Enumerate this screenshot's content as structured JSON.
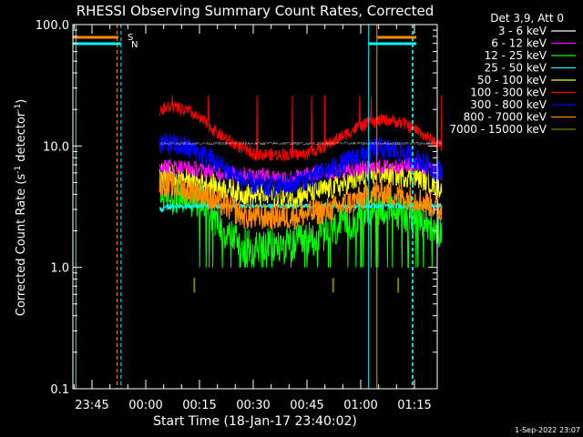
{
  "chart_data": {
    "type": "line",
    "title": "RHESSI Observing Summary Count Rates, Corrected",
    "xlabel": "Start Time (18-Jan-17 23:40:02)",
    "ylabel_main": "Corrected Count Rate (s",
    "ylabel_sup1": "-1",
    "ylabel_mid": " detector",
    "ylabel_sup2": "-1",
    "ylabel_end": ")",
    "yscale": "log",
    "ylim": [
      0.1,
      100.0
    ],
    "y_ticks": [
      {
        "value": 0.1,
        "label": "0.1"
      },
      {
        "value": 1.0,
        "label": "1.0"
      },
      {
        "value": 10.0,
        "label": "10.0"
      },
      {
        "value": 100.0,
        "label": "100.0"
      }
    ],
    "xlim_min": [
      -5,
      79
    ],
    "x_ticks": [
      {
        "value": 5,
        "label": "23:45"
      },
      {
        "value": 20,
        "label": "00:00"
      },
      {
        "value": 35,
        "label": "00:15"
      },
      {
        "value": 50,
        "label": "00:30"
      },
      {
        "value": 65,
        "label": "00:45"
      },
      {
        "value": 80,
        "label": "01:00"
      },
      {
        "value": 95,
        "label": "01:15"
      }
    ],
    "legend_title": "Det 3,9, Att 0",
    "legend_position": "top-right",
    "series": [
      {
        "name": "3 - 6 keV",
        "color": "#ffffff"
      },
      {
        "name": "6 - 12 keV",
        "color": "#ff00ff"
      },
      {
        "name": "12 - 25 keV",
        "color": "#00ff00"
      },
      {
        "name": "25 - 50 keV",
        "color": "#00ffff"
      },
      {
        "name": "50 - 100 keV",
        "color": "#ffff00"
      },
      {
        "name": "100 - 300 keV",
        "color": "#ff0000"
      },
      {
        "name": "300 - 800 keV",
        "color": "#0000ff"
      },
      {
        "name": "800 - 7000 keV",
        "color": "#ff8c00"
      },
      {
        "name": "7000 - 15000 keV",
        "color": "#808000"
      }
    ],
    "profiles": {
      "red": {
        "x": [
          15,
          18,
          22,
          25,
          28,
          32,
          37,
          43,
          48,
          52,
          57,
          61,
          65,
          68,
          72,
          75,
          78,
          80
        ],
        "y": [
          20,
          21,
          19,
          16,
          13,
          10.5,
          8.5,
          8.5,
          8.5,
          9.5,
          12,
          14.5,
          16,
          16.5,
          15,
          13,
          11,
          10
        ]
      },
      "blue": {
        "x": [
          15,
          20,
          25,
          30,
          35,
          40,
          45,
          50,
          55,
          60,
          65,
          70,
          75,
          80
        ],
        "y": [
          10.5,
          10,
          8.5,
          6.5,
          5,
          4.5,
          4.8,
          5.5,
          6.5,
          8,
          9.5,
          9,
          7.5,
          6
        ]
      },
      "magenta": {
        "x": [
          15,
          30,
          45,
          60,
          75,
          80
        ],
        "y": [
          7,
          6,
          5.5,
          6.5,
          7,
          6
        ]
      },
      "yellow": {
        "x": [
          15,
          25,
          35,
          45,
          55,
          65,
          75,
          80
        ],
        "y": [
          6,
          5,
          4,
          3.8,
          4.5,
          6,
          5.5,
          4.5
        ]
      },
      "orange": {
        "x": [
          15,
          25,
          35,
          45,
          55,
          65,
          75,
          80
        ],
        "y": [
          5,
          4,
          2.6,
          2.6,
          3,
          4.2,
          3.6,
          3
        ]
      },
      "green": {
        "x": [
          15,
          25,
          30,
          35,
          45,
          55,
          60,
          65,
          75,
          80
        ],
        "y": [
          4,
          3.5,
          2,
          1.5,
          1.5,
          2,
          2.5,
          3.2,
          2.5,
          2
        ]
      }
    },
    "bursts_7000_15000_min": [
      23,
      55,
      70
    ],
    "flags": [
      {
        "label": "S",
        "color": "#ff8c00"
      },
      {
        "label": "N",
        "color": "#00ffff"
      }
    ],
    "footer_date": "1-Sep-2022 23:07"
  }
}
